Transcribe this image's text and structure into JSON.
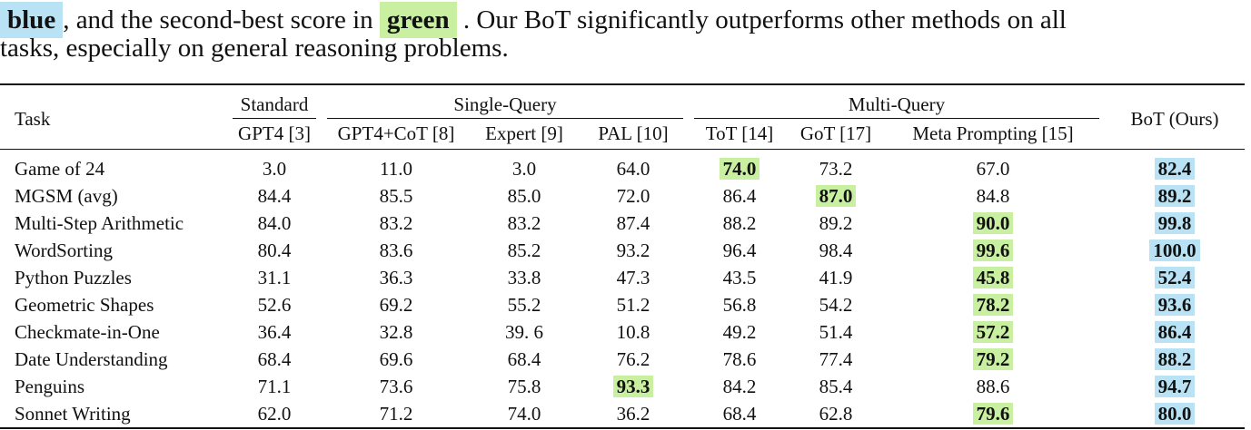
{
  "caption": {
    "best_word": "blue",
    "text_a": ", and the second-best score in",
    "second_word": "green",
    "text_b": ". Our BoT significantly outperforms other methods on all",
    "line2": "tasks, especially on general reasoning problems."
  },
  "table": {
    "task_header": "Task",
    "groups": {
      "standard": "Standard",
      "single": "Single-Query",
      "multi": "Multi-Query"
    },
    "bot_header": "BoT (Ours)",
    "columns": [
      "GPT4 [3]",
      "GPT4+CoT [8]",
      "Expert [9]",
      "PAL [10]",
      "ToT [14]",
      "GoT [17]",
      "Meta Prompting [15]"
    ],
    "rows": [
      {
        "task": "Game of 24",
        "gpt4": "3.0",
        "cot": "11.0",
        "expert": "3.0",
        "pal": "64.0",
        "tot": "74.0",
        "got": "73.2",
        "meta": "67.0",
        "bot": "82.4"
      },
      {
        "task": "MGSM (avg)",
        "gpt4": "84.4",
        "cot": "85.5",
        "expert": "85.0",
        "pal": "72.0",
        "tot": "86.4",
        "got": "87.0",
        "meta": "84.8",
        "bot": "89.2"
      },
      {
        "task": "Multi-Step Arithmetic",
        "gpt4": "84.0",
        "cot": "83.2",
        "expert": "83.2",
        "pal": "87.4",
        "tot": "88.2",
        "got": "89.2",
        "meta": "90.0",
        "bot": "99.8"
      },
      {
        "task": "WordSorting",
        "gpt4": "80.4",
        "cot": "83.6",
        "expert": "85.2",
        "pal": "93.2",
        "tot": "96.4",
        "got": "98.4",
        "meta": "99.6",
        "bot": "100.0"
      },
      {
        "task": "Python Puzzles",
        "gpt4": "31.1",
        "cot": "36.3",
        "expert": "33.8",
        "pal": "47.3",
        "tot": "43.5",
        "got": "41.9",
        "meta": "45.8",
        "bot": "52.4"
      },
      {
        "task": "Geometric Shapes",
        "gpt4": "52.6",
        "cot": "69.2",
        "expert": "55.2",
        "pal": "51.2",
        "tot": "56.8",
        "got": "54.2",
        "meta": "78.2",
        "bot": "93.6"
      },
      {
        "task": "Checkmate-in-One",
        "gpt4": "36.4",
        "cot": "32.8",
        "expert": "39. 6",
        "pal": "10.8",
        "tot": "49.2",
        "got": "51.4",
        "meta": "57.2",
        "bot": "86.4"
      },
      {
        "task": "Date Understanding",
        "gpt4": "68.4",
        "cot": "69.6",
        "expert": "68.4",
        "pal": "76.2",
        "tot": "78.6",
        "got": "77.4",
        "meta": "79.2",
        "bot": "88.2"
      },
      {
        "task": "Penguins",
        "gpt4": "71.1",
        "cot": "73.6",
        "expert": "75.8",
        "pal": "93.3",
        "tot": "84.2",
        "got": "85.4",
        "meta": "88.6",
        "bot": "94.7"
      },
      {
        "task": "Sonnet Writing",
        "gpt4": "62.0",
        "cot": "71.2",
        "expert": "74.0",
        "pal": "36.2",
        "tot": "68.4",
        "got": "62.8",
        "meta": "79.6",
        "bot": "80.0"
      }
    ],
    "highlight_colors": {
      "best": "#b9e3f5",
      "second": "#c8f0a0"
    }
  }
}
